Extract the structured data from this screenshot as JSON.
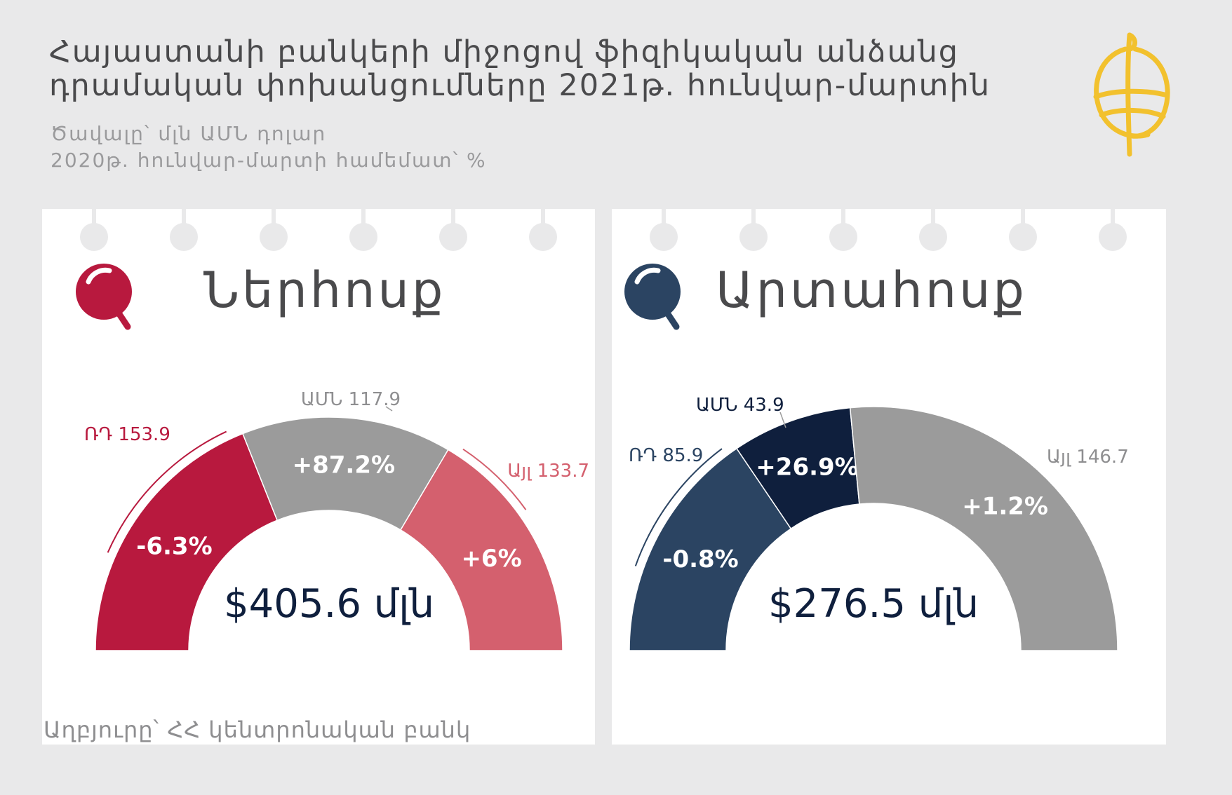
{
  "header": {
    "title_line1": "Հայաստանի բանկերի միջոցով ֆիզիկական անձանց",
    "title_line2": "դրամական փոխանցումները 2021թ. հունվար-մարտին",
    "subtitle_line1": "Ծավալը՝ մլն ԱՄՆ դոլար",
    "subtitle_line2": "2020թ. հունվար-մարտի համեմատ՝ %"
  },
  "source": "Աղբյուրը՝ ՀՀ կենտրոնական բանկ",
  "colors": {
    "red_dark": "#b8193e",
    "red_light": "#d4606e",
    "gray": "#9b9b9b",
    "navy": "#2b4462",
    "navy_dark": "#0f1f3d",
    "logo_gold": "#f2c12e"
  },
  "chart_data": [
    {
      "type": "pie",
      "title": "Ներհոսք",
      "total_label": "$405.6 մլն",
      "icon_color": "#b8193e",
      "slices": [
        {
          "label": "ՌԴ 153.9",
          "value": 153.9,
          "change": "-6.3%",
          "color": "#b8193e"
        },
        {
          "label": "ԱՄՆ 117.9",
          "value": 117.9,
          "change": "+87.2%",
          "color": "#9b9b9b"
        },
        {
          "label": "Այլ 133.7",
          "value": 133.7,
          "change": "+6%",
          "color": "#d4606e"
        }
      ]
    },
    {
      "type": "pie",
      "title": "Արտահոսք",
      "total_label": "$276.5 մլն",
      "icon_color": "#2b4462",
      "slices": [
        {
          "label": "ՌԴ 85.9",
          "value": 85.9,
          "change": "-0.8%",
          "color": "#2b4462"
        },
        {
          "label": "ԱՄՆ 43.9",
          "value": 43.9,
          "change": "+26.9%",
          "color": "#0f1f3d"
        },
        {
          "label": "Այլ 146.7",
          "value": 146.7,
          "change": "+1.2%",
          "color": "#9b9b9b"
        }
      ]
    }
  ]
}
